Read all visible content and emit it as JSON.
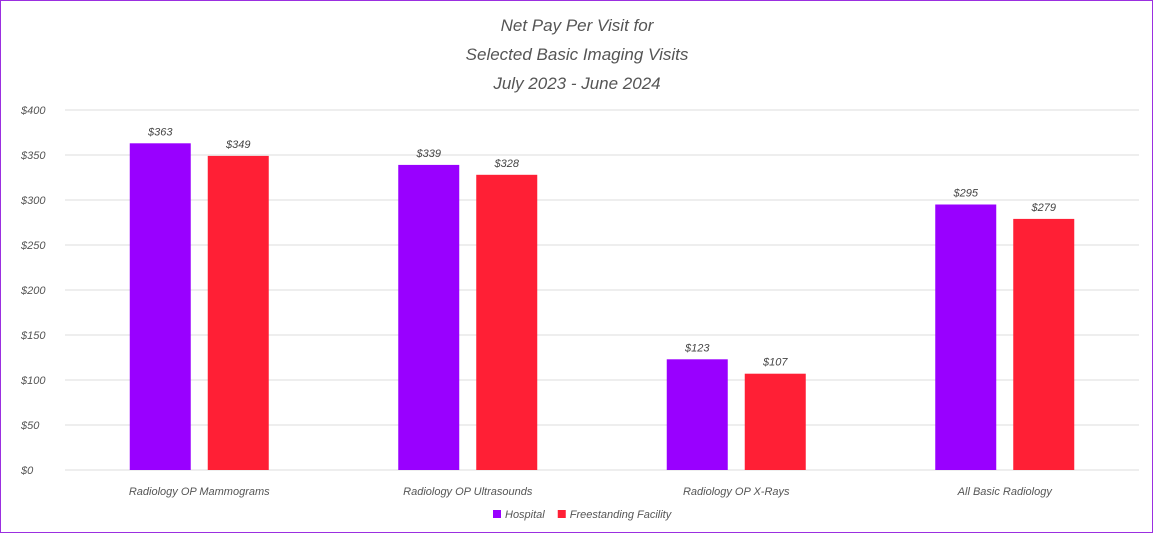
{
  "chart_data": {
    "type": "bar",
    "title_lines": [
      "Net Pay Per Visit for",
      "Selected Basic Imaging Visits",
      "July 2023 - June 2024"
    ],
    "categories": [
      "Radiology OP Mammograms",
      "Radiology OP Ultrasounds",
      "Radiology OP X-Rays",
      "All Basic Radiology"
    ],
    "series": [
      {
        "name": "Hospital",
        "values": [
          363,
          339,
          123,
          295
        ],
        "labels": [
          "$363",
          "$339",
          "$123",
          "$295"
        ],
        "color": "#9900ff"
      },
      {
        "name": "Freestanding Facility",
        "values": [
          349,
          328,
          107,
          279
        ],
        "labels": [
          "$349",
          "$328",
          "$107",
          "$279"
        ],
        "color": "#ff1f35"
      }
    ],
    "ylim": [
      0,
      400
    ],
    "yticks": [
      0,
      50,
      100,
      150,
      200,
      250,
      300,
      350,
      400
    ],
    "ytick_labels": [
      "$0",
      "$50",
      "$100",
      "$150",
      "$200",
      "$250",
      "$300",
      "$350",
      "$400"
    ],
    "grid": true,
    "legend_position": "bottom"
  }
}
